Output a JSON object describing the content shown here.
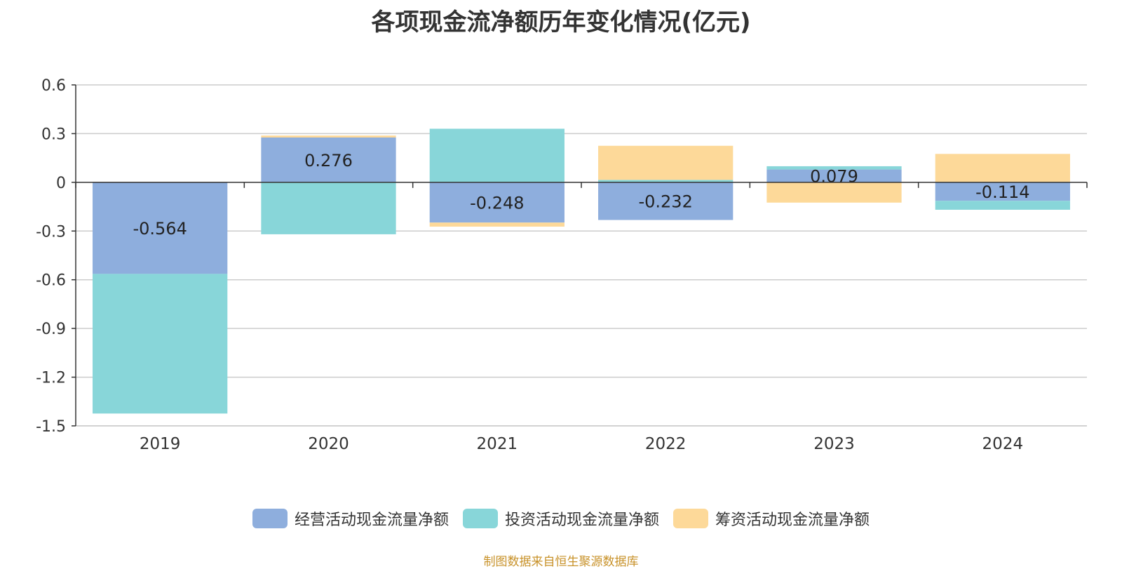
{
  "chart_data": {
    "type": "bar",
    "stacked": true,
    "title": "各项现金流净额历年变化情况(亿元)",
    "categories": [
      "2019",
      "2020",
      "2021",
      "2022",
      "2023",
      "2024"
    ],
    "ylim": [
      -1.5,
      0.6
    ],
    "yticks": [
      0.6,
      0.3,
      0,
      -0.3,
      -0.6,
      -0.9,
      -1.2,
      -1.5
    ],
    "ytick_labels": [
      "0.6",
      "0.3",
      "0",
      "-0.3",
      "-0.6",
      "-0.9",
      "-1.2",
      "-1.5"
    ],
    "grid": true,
    "legend_position": "bottom",
    "series": [
      {
        "name": "经营活动现金流量净额",
        "color": "#8eaedd",
        "values": [
          -0.564,
          0.276,
          -0.248,
          -0.232,
          0.079,
          -0.114
        ],
        "labels": [
          "-0.564",
          "0.276",
          "-0.248",
          "-0.232",
          "0.079",
          "-0.114"
        ]
      },
      {
        "name": "投资活动现金流量净额",
        "color": "#88d6d9",
        "values": [
          -0.86,
          -0.32,
          0.33,
          0.015,
          0.02,
          -0.055
        ]
      },
      {
        "name": "筹资活动现金流量净额",
        "color": "#fdd999",
        "values": [
          0.003,
          0.012,
          -0.025,
          0.21,
          -0.125,
          0.175
        ]
      }
    ],
    "source_note": "制图数据来自恒生聚源数据库"
  }
}
